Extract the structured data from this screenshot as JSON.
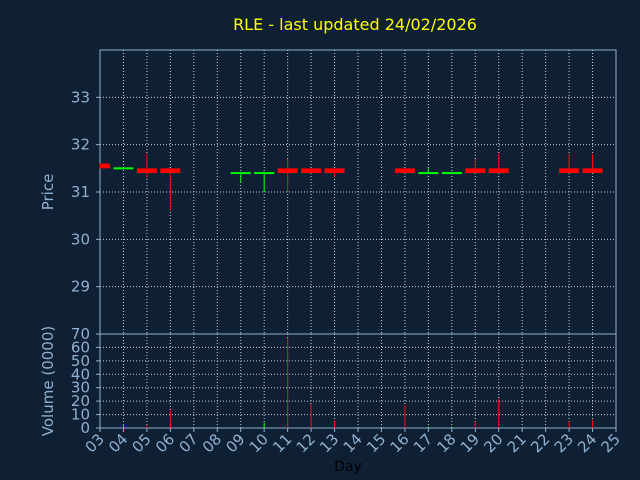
{
  "chart_data": {
    "type": "candlestick",
    "title": "RLE - last updated 24/02/2026",
    "xlabel": "Day",
    "price_ylabel": "Price",
    "volume_ylabel": "Volume (0000)",
    "x_ticks": [
      "03",
      "04",
      "05",
      "06",
      "07",
      "08",
      "09",
      "10",
      "11",
      "12",
      "13",
      "14",
      "15",
      "16",
      "17",
      "18",
      "19",
      "20",
      "21",
      "22",
      "23",
      "24",
      "25"
    ],
    "price_ticks": [
      29,
      30,
      31,
      32,
      33
    ],
    "price_ylim": [
      28.0,
      34.0
    ],
    "volume_ticks": [
      0,
      10,
      20,
      30,
      40,
      50,
      60,
      70
    ],
    "volume_ylim": [
      0,
      70
    ],
    "grid": true,
    "up_color": "#00ff00",
    "down_color": "#ff0000",
    "candles": [
      {
        "day": "03",
        "open": 31.6,
        "high": 31.6,
        "low": 31.5,
        "close": 31.5,
        "volume": 0
      },
      {
        "day": "04",
        "open": 31.5,
        "high": 31.5,
        "low": 31.5,
        "close": 31.5,
        "volume": 3
      },
      {
        "day": "05",
        "open": 31.5,
        "high": 31.8,
        "low": 31.3,
        "close": 31.4,
        "volume": 2
      },
      {
        "day": "06",
        "open": 31.5,
        "high": 31.5,
        "low": 30.6,
        "close": 31.4,
        "volume": 13
      },
      {
        "day": "09",
        "open": 31.4,
        "high": 31.4,
        "low": 31.2,
        "close": 31.4,
        "volume": 0
      },
      {
        "day": "10",
        "open": 31.4,
        "high": 31.4,
        "low": 31.0,
        "close": 31.4,
        "volume": 4
      },
      {
        "day": "11",
        "open": 31.5,
        "high": 31.7,
        "low": 31.0,
        "close": 31.4,
        "volume": 67
      },
      {
        "day": "12",
        "open": 31.5,
        "high": 31.5,
        "low": 31.4,
        "close": 31.4,
        "volume": 18
      },
      {
        "day": "13",
        "open": 31.5,
        "high": 31.5,
        "low": 31.3,
        "close": 31.4,
        "volume": 5
      },
      {
        "day": "16",
        "open": 31.5,
        "high": 31.5,
        "low": 31.4,
        "close": 31.4,
        "volume": 17
      },
      {
        "day": "17",
        "open": 31.4,
        "high": 31.5,
        "low": 31.4,
        "close": 31.4,
        "volume": 1
      },
      {
        "day": "18",
        "open": 31.4,
        "high": 31.4,
        "low": 31.4,
        "close": 31.4,
        "volume": 1
      },
      {
        "day": "19",
        "open": 31.5,
        "high": 31.7,
        "low": 31.4,
        "close": 31.4,
        "volume": 5
      },
      {
        "day": "20",
        "open": 31.5,
        "high": 31.8,
        "low": 31.4,
        "close": 31.4,
        "volume": 22
      },
      {
        "day": "23",
        "open": 31.5,
        "high": 31.8,
        "low": 31.4,
        "close": 31.4,
        "volume": 5
      },
      {
        "day": "24",
        "open": 31.5,
        "high": 31.8,
        "low": 31.4,
        "close": 31.4,
        "volume": 6
      }
    ]
  }
}
